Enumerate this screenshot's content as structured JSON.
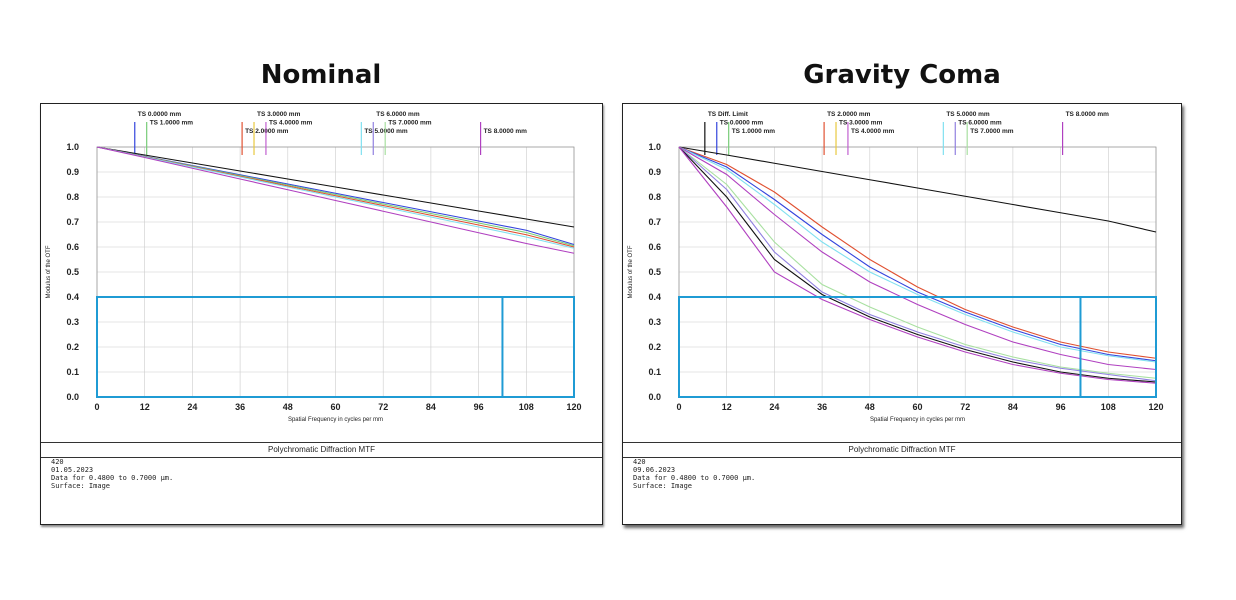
{
  "titles": {
    "left": "Nominal",
    "right": "Gravity Coma"
  },
  "colors": {
    "roi_box": "#1f9bd4",
    "diffraction_limit": "#111111",
    "grid": "#cccccc"
  },
  "chart_data": [
    {
      "type": "line",
      "panel": "left",
      "title": "Polychromatic Diffraction MTF",
      "xlabel": "Spatial Frequency in cycles per mm",
      "ylabel": "Modulus of the OTF",
      "xlim": [
        0,
        120
      ],
      "ylim": [
        0,
        1.0
      ],
      "x_ticks": [
        "0",
        "12",
        "24",
        "36",
        "48",
        "60",
        "72",
        "84",
        "96",
        "108",
        "120"
      ],
      "y_ticks": [
        "0.0",
        "0.1",
        "0.2",
        "0.3",
        "0.4",
        "0.5",
        "0.6",
        "0.7",
        "0.8",
        "0.9",
        "1.0"
      ],
      "grid": true,
      "legend": [
        {
          "label": "TS 0.0000 mm",
          "color": "#3344dd",
          "x": 9.5
        },
        {
          "label": "TS 1.0000 mm",
          "color": "#77cc77",
          "x": 12.5
        },
        {
          "label": "TS 2.0000 mm",
          "color": "#e05030",
          "x": 36.5
        },
        {
          "label": "TS 3.0000 mm",
          "color": "#e8c840",
          "x": 39.5
        },
        {
          "label": "TS 4.0000 mm",
          "color": "#c060d0",
          "x": 42.5
        },
        {
          "label": "TS 5.0000 mm",
          "color": "#80e0f0",
          "x": 66.5
        },
        {
          "label": "TS 6.0000 mm",
          "color": "#9080e0",
          "x": 69.5
        },
        {
          "label": "TS 7.0000 mm",
          "color": "#a8e0a0",
          "x": 72.5
        },
        {
          "label": "TS 8.0000 mm",
          "color": "#b040c0",
          "x": 96.5
        }
      ],
      "series": [
        {
          "color": "#111111",
          "x": [
            0,
            12,
            24,
            36,
            48,
            60,
            72,
            84,
            96,
            108,
            120
          ],
          "y": [
            1.0,
            0.968,
            0.936,
            0.904,
            0.872,
            0.84,
            0.808,
            0.776,
            0.744,
            0.712,
            0.68
          ]
        },
        {
          "color": "#3344dd",
          "x": [
            0,
            12,
            24,
            36,
            48,
            60,
            72,
            84,
            96,
            108,
            120
          ],
          "y": [
            1.0,
            0.963,
            0.926,
            0.889,
            0.852,
            0.815,
            0.778,
            0.741,
            0.704,
            0.667,
            0.61
          ]
        },
        {
          "color": "#77cc77",
          "x": [
            0,
            12,
            24,
            36,
            48,
            60,
            72,
            84,
            96,
            108,
            120
          ],
          "y": [
            1.0,
            0.962,
            0.924,
            0.886,
            0.848,
            0.81,
            0.772,
            0.734,
            0.696,
            0.658,
            0.605
          ]
        },
        {
          "color": "#e05030",
          "x": [
            0,
            12,
            24,
            36,
            48,
            60,
            72,
            84,
            96,
            108,
            120
          ],
          "y": [
            1.0,
            0.961,
            0.922,
            0.883,
            0.844,
            0.805,
            0.766,
            0.727,
            0.688,
            0.649,
            0.6
          ]
        },
        {
          "color": "#80e0f0",
          "x": [
            0,
            12,
            24,
            36,
            48,
            60,
            72,
            84,
            96,
            108,
            120
          ],
          "y": [
            1.0,
            0.96,
            0.92,
            0.88,
            0.84,
            0.8,
            0.76,
            0.72,
            0.68,
            0.64,
            0.595
          ]
        },
        {
          "color": "#b040c0",
          "x": [
            0,
            12,
            24,
            36,
            48,
            60,
            72,
            84,
            96,
            108,
            120
          ],
          "y": [
            1.0,
            0.958,
            0.915,
            0.872,
            0.829,
            0.786,
            0.743,
            0.7,
            0.657,
            0.614,
            0.575
          ]
        }
      ],
      "roi": {
        "x0": 0,
        "x1": 120,
        "y0": 0,
        "y1": 0.4,
        "x_mark": 102
      },
      "info": [
        "420",
        "01.05.2023",
        "Data for 0.4800 to 0.7000 µm.",
        "Surface: Image"
      ]
    },
    {
      "type": "line",
      "panel": "right",
      "title": "Polychromatic Diffraction MTF",
      "xlabel": "Spatial Frequency in cycles per mm",
      "ylabel": "Modulus of the OTF",
      "xlim": [
        0,
        120
      ],
      "ylim": [
        0,
        1.0
      ],
      "x_ticks": [
        "0",
        "12",
        "24",
        "36",
        "48",
        "60",
        "72",
        "84",
        "96",
        "108",
        "120"
      ],
      "y_ticks": [
        "0.0",
        "0.1",
        "0.2",
        "0.3",
        "0.4",
        "0.5",
        "0.6",
        "0.7",
        "0.8",
        "0.9",
        "1.0"
      ],
      "grid": true,
      "legend": [
        {
          "label": "TS Diff. Limit",
          "color": "#111111",
          "x": 6.5
        },
        {
          "label": "TS 0.0000 mm",
          "color": "#3344dd",
          "x": 9.5
        },
        {
          "label": "TS 1.0000 mm",
          "color": "#77cc77",
          "x": 12.5
        },
        {
          "label": "TS 2.0000 mm",
          "color": "#e05030",
          "x": 36.5
        },
        {
          "label": "TS 3.0000 mm",
          "color": "#e8c840",
          "x": 39.5
        },
        {
          "label": "TS 4.0000 mm",
          "color": "#c060d0",
          "x": 42.5
        },
        {
          "label": "TS 5.0000 mm",
          "color": "#80e0f0",
          "x": 66.5
        },
        {
          "label": "TS 6.0000 mm",
          "color": "#9080e0",
          "x": 69.5
        },
        {
          "label": "TS 7.0000 mm",
          "color": "#a8e0a0",
          "x": 72.5
        },
        {
          "label": "TS 8.0000 mm",
          "color": "#b040c0",
          "x": 96.5
        }
      ],
      "series": [
        {
          "color": "#111111",
          "x": [
            0,
            12,
            24,
            36,
            48,
            60,
            72,
            84,
            96,
            108,
            120
          ],
          "y": [
            1.0,
            0.968,
            0.935,
            0.902,
            0.869,
            0.836,
            0.803,
            0.77,
            0.737,
            0.704,
            0.66
          ]
        },
        {
          "color": "#e05030",
          "x": [
            0,
            12,
            24,
            36,
            48,
            60,
            72,
            84,
            96,
            108,
            120
          ],
          "y": [
            1.0,
            0.93,
            0.82,
            0.68,
            0.55,
            0.44,
            0.35,
            0.28,
            0.22,
            0.18,
            0.155
          ]
        },
        {
          "color": "#3344dd",
          "x": [
            0,
            12,
            24,
            36,
            48,
            60,
            72,
            84,
            96,
            108,
            120
          ],
          "y": [
            1.0,
            0.92,
            0.79,
            0.65,
            0.52,
            0.42,
            0.34,
            0.27,
            0.21,
            0.17,
            0.145
          ]
        },
        {
          "color": "#80e0f0",
          "x": [
            0,
            12,
            24,
            36,
            48,
            60,
            72,
            84,
            96,
            108,
            120
          ],
          "y": [
            1.0,
            0.91,
            0.77,
            0.62,
            0.5,
            0.41,
            0.33,
            0.26,
            0.2,
            0.165,
            0.14
          ]
        },
        {
          "color": "#b040c0",
          "x": [
            0,
            12,
            24,
            36,
            48,
            60,
            72,
            84,
            96,
            108,
            120
          ],
          "y": [
            1.0,
            0.89,
            0.73,
            0.58,
            0.46,
            0.37,
            0.29,
            0.22,
            0.17,
            0.13,
            0.11
          ]
        },
        {
          "color": "#a8e0a0",
          "x": [
            0,
            12,
            24,
            36,
            48,
            60,
            72,
            84,
            96,
            108,
            120
          ],
          "y": [
            1.0,
            0.85,
            0.62,
            0.45,
            0.36,
            0.28,
            0.21,
            0.16,
            0.12,
            0.095,
            0.075
          ]
        },
        {
          "color": "#9080e0",
          "x": [
            0,
            12,
            24,
            36,
            48,
            60,
            72,
            84,
            96,
            108,
            120
          ],
          "y": [
            1.0,
            0.83,
            0.58,
            0.42,
            0.33,
            0.26,
            0.2,
            0.15,
            0.115,
            0.09,
            0.065
          ]
        },
        {
          "color": "#111111",
          "x": [
            0,
            12,
            24,
            36,
            48,
            60,
            72,
            84,
            96,
            108,
            120
          ],
          "y": [
            1.0,
            0.8,
            0.55,
            0.41,
            0.32,
            0.25,
            0.19,
            0.14,
            0.1,
            0.075,
            0.06
          ]
        },
        {
          "color": "#b040c0",
          "x": [
            0,
            12,
            24,
            36,
            48,
            60,
            72,
            84,
            96,
            108,
            120
          ],
          "y": [
            1.0,
            0.76,
            0.5,
            0.39,
            0.31,
            0.24,
            0.18,
            0.13,
            0.095,
            0.07,
            0.055
          ]
        }
      ],
      "roi": {
        "x0": 0,
        "x1": 120,
        "y0": 0,
        "y1": 0.4,
        "x_mark": 101
      },
      "info": [
        "420",
        "09.06.2023",
        "Data for 0.4800 to 0.7000 µm.",
        "Surface: Image"
      ]
    }
  ]
}
